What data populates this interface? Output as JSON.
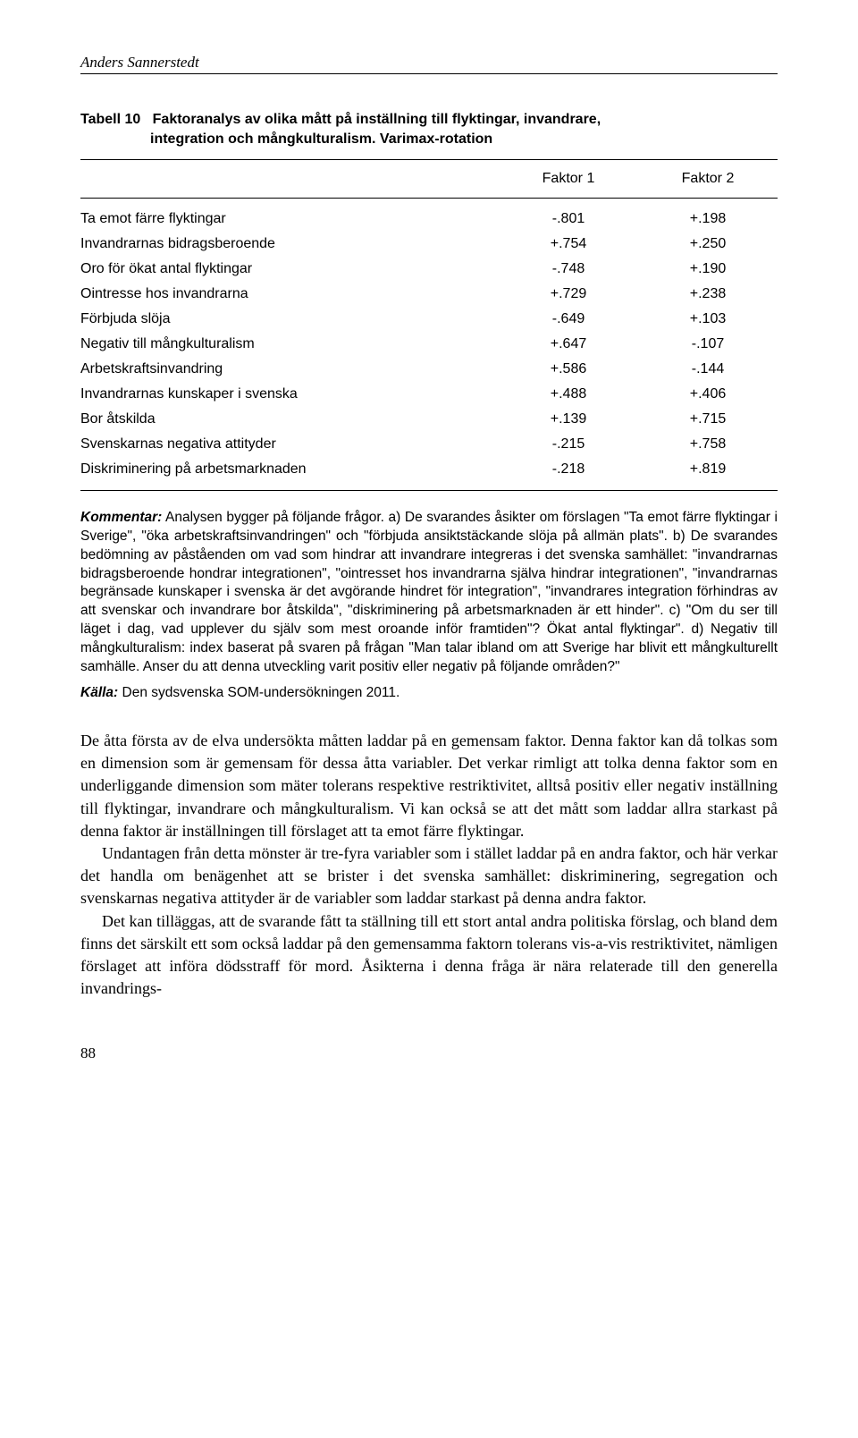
{
  "header": {
    "author": "Anders Sannerstedt"
  },
  "table": {
    "label": "Tabell 10",
    "title_line1": "Faktoranalys av olika mått på inställning till flyktingar, invandrare,",
    "title_line2": "integration och mångkulturalism. Varimax-rotation",
    "columns": {
      "factor1": "Faktor 1",
      "factor2": "Faktor 2"
    },
    "rows": [
      {
        "label": "Ta emot färre flyktingar",
        "f1": "-.801",
        "f2": "+.198"
      },
      {
        "label": "Invandrarnas bidragsberoende",
        "f1": "+.754",
        "f2": "+.250"
      },
      {
        "label": "Oro för ökat antal flyktingar",
        "f1": "-.748",
        "f2": "+.190"
      },
      {
        "label": "Ointresse hos invandrarna",
        "f1": "+.729",
        "f2": "+.238"
      },
      {
        "label": "Förbjuda slöja",
        "f1": "-.649",
        "f2": "+.103"
      },
      {
        "label": "Negativ till mångkulturalism",
        "f1": "+.647",
        "f2": "-.107"
      },
      {
        "label": "Arbetskraftsinvandring",
        "f1": "+.586",
        "f2": "-.144"
      },
      {
        "label": "Invandrarnas kunskaper i svenska",
        "f1": "+.488",
        "f2": "+.406"
      },
      {
        "label": "Bor åtskilda",
        "f1": "+.139",
        "f2": "+.715"
      },
      {
        "label": "Svenskarnas negativa attityder",
        "f1": "-.215",
        "f2": "+.758"
      },
      {
        "label": "Diskriminering på arbetsmarknaden",
        "f1": "-.218",
        "f2": "+.819"
      }
    ]
  },
  "comment": {
    "label": "Kommentar:",
    "text": " Analysen bygger på följande frågor. a) De svarandes åsikter om förslagen \"Ta emot färre flyktingar i Sverige\", \"öka arbetskraftsinvandringen\" och \"förbjuda ansiktstäckande slöja på allmän plats\". b) De svarandes bedömning av påståenden om vad som hindrar att invandrare integreras i det svenska samhället: \"invandrarnas bidragsberoende hondrar integrationen\", \"ointresset hos invandrarna själva hindrar integrationen\", \"invandrarnas begränsade kunskaper i svenska är det avgörande hindret för integration\", \"invandrares integration förhindras av att svenskar och invandrare bor åtskilda\", \"diskriminering på arbetsmarknaden är ett hinder\". c) \"Om du ser till läget i dag, vad upplever du själv som mest oroande inför framtiden\"? Ökat antal flyktingar\". d) Negativ till mångkulturalism: index baserat på svaren på frågan \"Man talar ibland om att Sverige har blivit ett mångkulturellt samhälle. Anser du att denna utveckling varit positiv eller negativ på följande områden?\""
  },
  "source": {
    "label": "Källa:",
    "text": " Den sydsvenska SOM-undersökningen 2011."
  },
  "body": {
    "p1": "De åtta första av de elva undersökta måtten laddar på en gemensam faktor. Denna faktor kan då tolkas som en dimension som är gemensam för dessa åtta variabler. Det verkar rimligt att tolka denna faktor som en underliggande dimension som mäter tolerans respektive restriktivitet, alltså positiv eller negativ inställning till flyktingar, invandrare och mångkulturalism. Vi kan också se att det mått som laddar allra starkast på denna faktor är inställningen till förslaget att ta emot färre flyktingar.",
    "p2": "Undantagen från detta mönster är tre-fyra variabler som i stället laddar på en andra faktor, och här verkar det handla om benägenhet att se brister i det svenska samhället: diskriminering, segregation och svenskarnas negativa attityder är de variabler som laddar starkast på denna andra faktor.",
    "p3": "Det kan tilläggas, att de svarande fått ta ställning till ett stort antal andra politiska förslag, och bland dem finns det särskilt ett som också laddar på den gemensamma faktorn tolerans vis-a-vis restriktivitet, nämligen förslaget att införa dödsstraff för mord. Åsikterna i denna fråga är nära relaterade till den generella invandrings-"
  },
  "pageNumber": "88"
}
